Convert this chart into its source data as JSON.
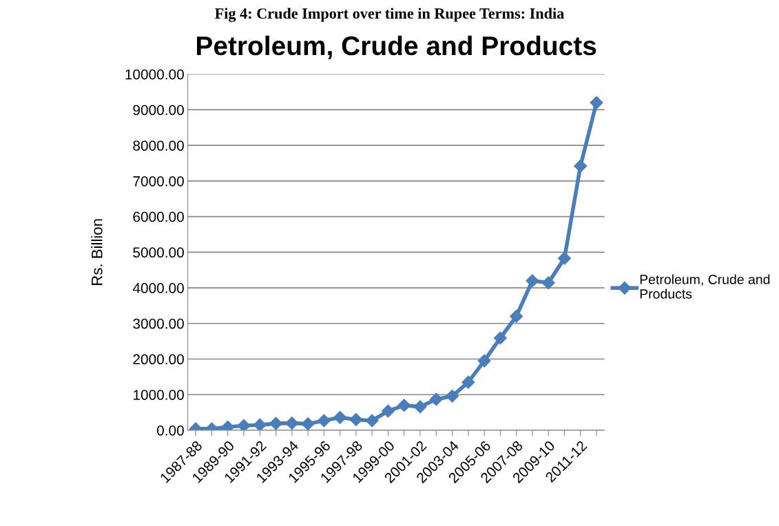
{
  "chart_data": {
    "type": "line",
    "title": "Petroleum, Crude and Products",
    "ylabel": "Rs. Billion",
    "annotations": [
      "Fig 4: Crude Import over time in Rupee Terms: India"
    ],
    "categories": [
      "1987-88",
      null,
      "1989-90",
      null,
      "1991-92",
      null,
      "1993-94",
      null,
      "1995-96",
      null,
      "1997-98",
      null,
      "1999-00",
      null,
      "2001-02",
      null,
      "2003-04",
      null,
      "2005-06",
      null,
      "2007-08",
      null,
      "2009-10",
      null,
      "2011-12",
      null
    ],
    "series": [
      {
        "name": "Petroleum, Crude and Products",
        "color": "#4a7ebb",
        "values": [
          40,
          40,
          90,
          130,
          150,
          190,
          200,
          180,
          270,
          360,
          300,
          270,
          540,
          700,
          660,
          870,
          960,
          1350,
          1950,
          2590,
          3200,
          4200,
          4140,
          4830,
          7420,
          9200
        ]
      }
    ],
    "ylim": [
      0,
      10000
    ],
    "yticks": [
      {
        "value": 0,
        "label": "0.00"
      },
      {
        "value": 1000,
        "label": "1000.00"
      },
      {
        "value": 2000,
        "label": "2000.00"
      },
      {
        "value": 3000,
        "label": "3000.00"
      },
      {
        "value": 4000,
        "label": "4000.00"
      },
      {
        "value": 5000,
        "label": "5000.00"
      },
      {
        "value": 6000,
        "label": "6000.00"
      },
      {
        "value": 7000,
        "label": "7000.00"
      },
      {
        "value": 8000,
        "label": "8000.00"
      },
      {
        "value": 9000,
        "label": "9000.00"
      },
      {
        "value": 10000,
        "label": "10000.00"
      }
    ],
    "grid": "y",
    "legend": "right",
    "marker": "diamond",
    "line_style": "solid"
  }
}
